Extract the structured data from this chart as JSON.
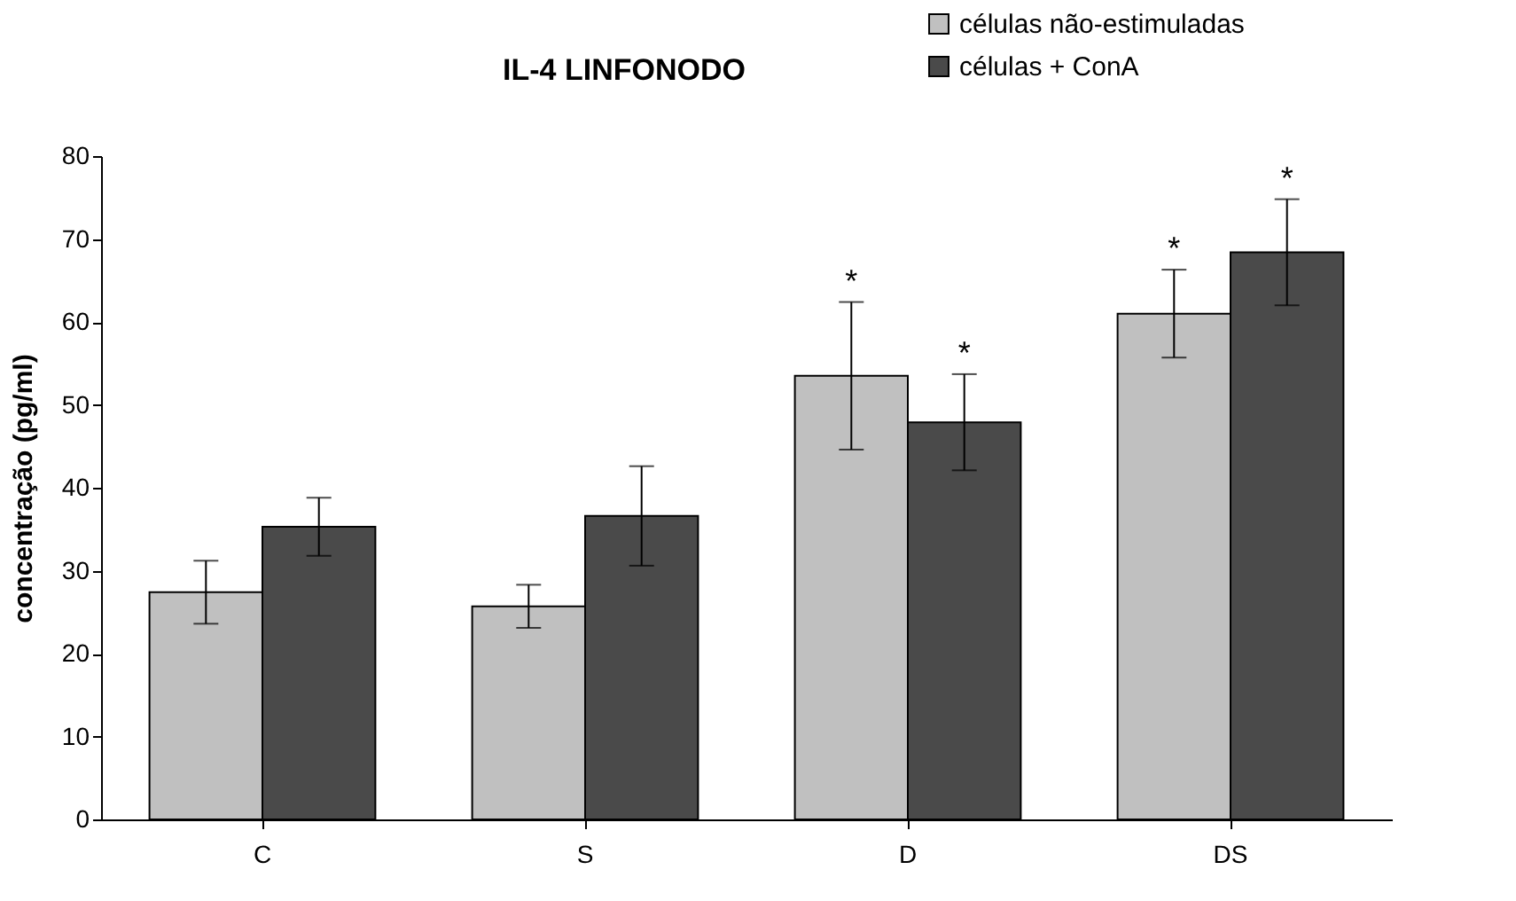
{
  "chart_data": {
    "type": "bar",
    "title": "IL-4 LINFONODO",
    "ylabel": "concentração (pg/ml)",
    "categories": [
      "C",
      "S",
      "D",
      "DS"
    ],
    "series": [
      {
        "name": "células não-estimuladas",
        "color": "#c0c0c0",
        "values": [
          27.4,
          25.7,
          53.5,
          61.0
        ],
        "errors": [
          3.8,
          2.6,
          8.9,
          5.3
        ],
        "value_labels": [
          null,
          null,
          "*",
          "*"
        ]
      },
      {
        "name": "células + ConA",
        "color": "#4a4a4a",
        "values": [
          35.3,
          36.6,
          47.9,
          68.4
        ],
        "errors": [
          3.5,
          6,
          5.8,
          6.4
        ],
        "value_labels": [
          null,
          null,
          "*",
          "*"
        ]
      }
    ],
    "ylim": [
      0,
      80
    ],
    "yticks": [
      0,
      10,
      20,
      30,
      40,
      50,
      60,
      70,
      80
    ],
    "grid": false,
    "legend": "top right"
  }
}
